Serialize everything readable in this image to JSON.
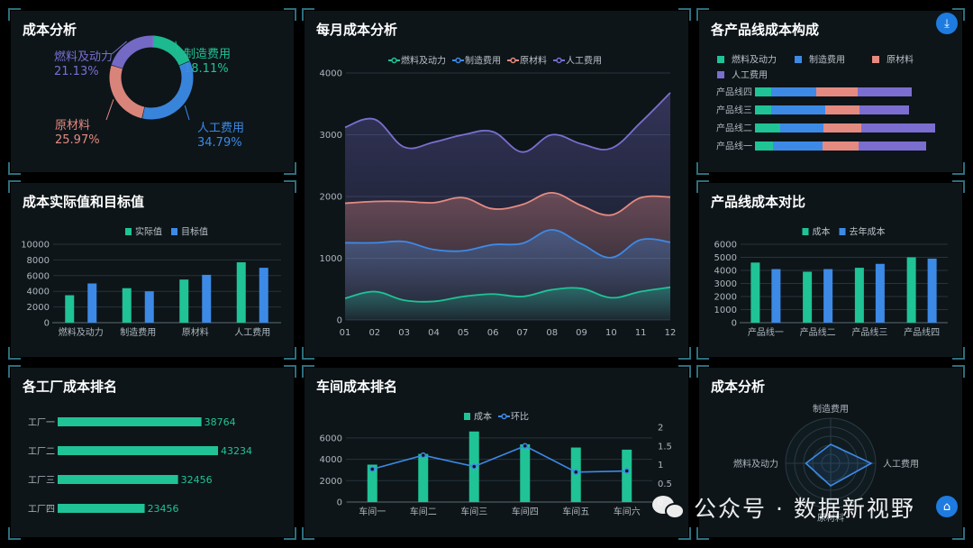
{
  "panels": {
    "p1": {
      "title": "成本分析"
    },
    "p2": {
      "title": "每月成本分析"
    },
    "p3": {
      "title": "各产品线成本构成"
    },
    "p4": {
      "title": "成本实际值和目标值"
    },
    "p5": {
      "title": "产品线成本对比"
    },
    "p6": {
      "title": "各工厂成本排名"
    },
    "p7": {
      "title": "车间成本排名"
    },
    "p8": {
      "title": "成本分析"
    }
  },
  "watermark": {
    "text": "公众号 · 数据新视野"
  },
  "icons": {
    "download": "download-icon",
    "restore": "restore-icon"
  },
  "colors": {
    "green": "#1fc396",
    "blue": "#3c8ae6",
    "salmon": "#e58a80",
    "purple": "#7b6ed0",
    "panel": "#0d1519"
  },
  "chart_data": [
    {
      "id": "donut",
      "type": "pie",
      "slices": [
        {
          "label": "制造费用",
          "pct": "18.11%",
          "value": 18.11,
          "color": "#1fc396"
        },
        {
          "label": "人工费用",
          "pct": "34.79%",
          "value": 34.79,
          "color": "#3c8ae6"
        },
        {
          "label": "原材料",
          "pct": "25.97%",
          "value": 25.97,
          "color": "#e58a80"
        },
        {
          "label": "燃料及动力",
          "pct": "21.13%",
          "value": 21.13,
          "color": "#7b6ed0"
        }
      ]
    },
    {
      "id": "monthly",
      "type": "area",
      "x": [
        "01",
        "02",
        "03",
        "04",
        "05",
        "06",
        "07",
        "08",
        "09",
        "10",
        "11",
        "12"
      ],
      "ylim": [
        0,
        4000
      ],
      "yticks": [
        "0",
        "1000",
        "2000",
        "3000",
        "4000"
      ],
      "series": [
        {
          "name": "燃料及动力",
          "color": "#1fc396",
          "values": [
            350,
            460,
            320,
            300,
            380,
            420,
            380,
            490,
            510,
            360,
            460,
            530
          ]
        },
        {
          "name": "制造费用",
          "color": "#3c8ae6",
          "values": [
            1250,
            1250,
            1270,
            1140,
            1120,
            1220,
            1240,
            1460,
            1230,
            1010,
            1300,
            1260
          ]
        },
        {
          "name": "原材料",
          "color": "#e58a80",
          "values": [
            1890,
            1920,
            1920,
            1900,
            1980,
            1800,
            1870,
            2060,
            1850,
            1700,
            1980,
            1990
          ]
        },
        {
          "name": "人工费用",
          "color": "#7b6ed0",
          "values": [
            3120,
            3250,
            2800,
            2880,
            3000,
            3050,
            2720,
            3000,
            2850,
            2780,
            3200,
            3680
          ]
        }
      ]
    },
    {
      "id": "composition",
      "type": "bar",
      "categories": [
        "产品线四",
        "产品线三",
        "产品线二",
        "产品线一"
      ],
      "series": [
        {
          "name": "燃料及动力",
          "color": "#1fc396",
          "values": [
            18,
            18,
            28,
            20
          ]
        },
        {
          "name": "制造费用",
          "color": "#3c8ae6",
          "values": [
            50,
            60,
            48,
            55
          ]
        },
        {
          "name": "原材料",
          "color": "#e58a80",
          "values": [
            46,
            38,
            42,
            40
          ]
        },
        {
          "name": "人工费用",
          "color": "#7b6ed0",
          "values": [
            60,
            55,
            82,
            75
          ]
        }
      ]
    },
    {
      "id": "actual-target",
      "type": "bar",
      "categories": [
        "燃料及动力",
        "制造费用",
        "原材料",
        "人工费用"
      ],
      "ylim": [
        0,
        10000
      ],
      "yticks": [
        "0",
        "2000",
        "4000",
        "6000",
        "8000",
        "10000"
      ],
      "series": [
        {
          "name": "实际值",
          "color": "#1fc396",
          "values": [
            3500,
            4400,
            5500,
            7700
          ]
        },
        {
          "name": "目标值",
          "color": "#3c8ae6",
          "values": [
            5000,
            4000,
            6100,
            7000
          ]
        }
      ]
    },
    {
      "id": "line-compare",
      "type": "bar",
      "categories": [
        "产品线一",
        "产品线二",
        "产品线三",
        "产品线四"
      ],
      "ylim": [
        0,
        6000
      ],
      "yticks": [
        "0",
        "1000",
        "2000",
        "3000",
        "4000",
        "5000",
        "6000"
      ],
      "series": [
        {
          "name": "成本",
          "color": "#1fc396",
          "values": [
            4600,
            3900,
            4200,
            5000
          ]
        },
        {
          "name": "去年成本",
          "color": "#3c8ae6",
          "values": [
            4100,
            4100,
            4500,
            4900
          ]
        }
      ]
    },
    {
      "id": "factory-rank",
      "type": "bar",
      "categories": [
        "工厂一",
        "工厂二",
        "工厂三",
        "工厂四"
      ],
      "values": [
        38764,
        43234,
        32456,
        23456
      ],
      "labels": [
        "38764",
        "43234",
        "32456",
        "23456"
      ],
      "xlim": [
        0,
        45000
      ]
    },
    {
      "id": "workshop-rank",
      "type": "bar",
      "categories": [
        "车间一",
        "车间二",
        "车间三",
        "车间四",
        "车间五",
        "车间六"
      ],
      "ylim": [
        0,
        7000
      ],
      "yticks": [
        "0",
        "2000",
        "4000",
        "6000"
      ],
      "y2lim": [
        0,
        2
      ],
      "y2ticks": [
        "0",
        "0.5",
        "1",
        "1.5",
        "2"
      ],
      "series": [
        {
          "name": "成本",
          "type": "bar",
          "color": "#1fc396",
          "values": [
            3500,
            4500,
            6600,
            5400,
            5100,
            4900
          ]
        },
        {
          "name": "环比",
          "type": "line",
          "axis": "right",
          "color": "#3c8ae6",
          "values": [
            0.88,
            1.25,
            0.95,
            1.5,
            0.8,
            0.83
          ]
        }
      ]
    },
    {
      "id": "radar",
      "type": "radar",
      "indicators": [
        "制造费用",
        "人工费用",
        "原材料",
        "燃料及动力"
      ],
      "values": [
        0.42,
        0.9,
        0.5,
        0.55
      ]
    }
  ]
}
